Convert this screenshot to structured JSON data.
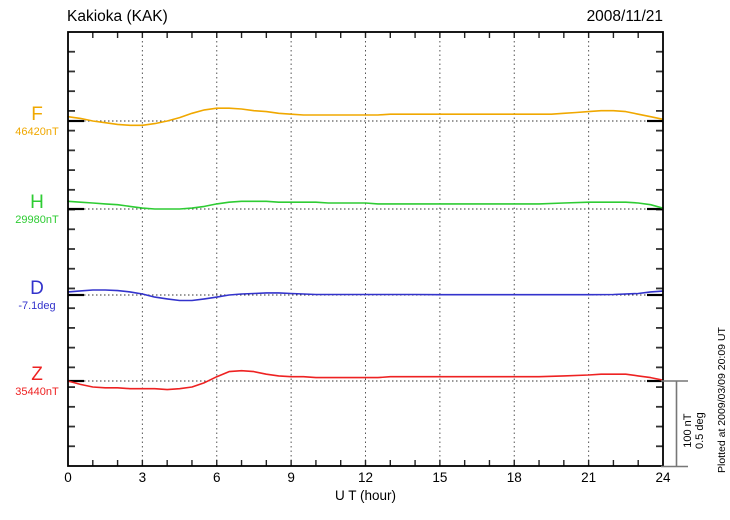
{
  "header": {
    "title": "Kakioka (KAK)",
    "date": "2008/11/21"
  },
  "axes": {
    "x_label": "U T (hour)",
    "x_ticks": [
      "0",
      "3",
      "6",
      "9",
      "12",
      "15",
      "18",
      "21",
      "24"
    ]
  },
  "channels": [
    {
      "id": "F",
      "label": "F",
      "baseline_label": "46420nT",
      "unit": "nT",
      "reference_value": 46420,
      "color": "#F0A800"
    },
    {
      "id": "H",
      "label": "H",
      "baseline_label": "29980nT",
      "unit": "nT",
      "reference_value": 29980,
      "color": "#2ECC33"
    },
    {
      "id": "D",
      "label": "D",
      "baseline_label": "-7.1deg",
      "unit": "deg",
      "reference_value": -7.1,
      "color": "#3333CC"
    },
    {
      "id": "Z",
      "label": "Z",
      "baseline_label": "35440nT",
      "unit": "nT",
      "reference_value": 35440,
      "color": "#EE2222"
    }
  ],
  "scale_bar": {
    "label_nT": "100 nT",
    "label_deg": "0.5 deg"
  },
  "footer_note": "Plotted at 2009/03/09 20:09 UT",
  "chart_data": {
    "type": "line",
    "title": "Kakioka (KAK) magnetogram",
    "date": "2008/11/21",
    "xlabel": "U T (hour)",
    "x_range": [
      0,
      24
    ],
    "x_tick_step_hours": 3,
    "grid": "vertical-dotted-every-3h, dotted reference line per channel",
    "legend_position": "left-margin channel labels",
    "scale": {
      "nT_per_division": 100,
      "deg_per_division": 0.5
    },
    "series": [
      {
        "name": "F",
        "unit": "nT",
        "reference": 46420,
        "points": [
          [
            0,
            5
          ],
          [
            0.5,
            3
          ],
          [
            1,
            0
          ],
          [
            1.5,
            -2
          ],
          [
            2,
            -4
          ],
          [
            2.5,
            -5
          ],
          [
            3,
            -5
          ],
          [
            3.5,
            -3
          ],
          [
            4,
            0
          ],
          [
            4.5,
            4
          ],
          [
            5,
            9
          ],
          [
            5.5,
            13
          ],
          [
            6,
            15
          ],
          [
            6.5,
            15
          ],
          [
            7,
            14
          ],
          [
            7.5,
            12
          ],
          [
            8,
            11
          ],
          [
            8.5,
            9
          ],
          [
            9,
            8
          ],
          [
            9.5,
            7
          ],
          [
            10,
            7
          ],
          [
            10.5,
            7
          ],
          [
            11,
            7
          ],
          [
            11.5,
            7
          ],
          [
            12,
            7
          ],
          [
            12.5,
            7
          ],
          [
            13,
            8
          ],
          [
            13.5,
            8
          ],
          [
            14,
            8
          ],
          [
            14.5,
            8
          ],
          [
            15,
            8
          ],
          [
            15.5,
            8
          ],
          [
            16,
            8
          ],
          [
            16.5,
            8
          ],
          [
            17,
            8
          ],
          [
            17.5,
            8
          ],
          [
            18,
            8
          ],
          [
            18.5,
            8
          ],
          [
            19,
            8
          ],
          [
            19.5,
            8
          ],
          [
            20,
            9
          ],
          [
            20.5,
            10
          ],
          [
            21,
            11
          ],
          [
            21.5,
            12
          ],
          [
            22,
            12
          ],
          [
            22.5,
            11
          ],
          [
            23,
            8
          ],
          [
            23.5,
            5
          ],
          [
            24,
            2
          ]
        ]
      },
      {
        "name": "H",
        "unit": "nT",
        "reference": 29980,
        "points": [
          [
            0,
            9
          ],
          [
            0.5,
            8
          ],
          [
            1,
            7
          ],
          [
            1.5,
            6
          ],
          [
            2,
            5
          ],
          [
            2.5,
            3
          ],
          [
            3,
            1
          ],
          [
            3.5,
            0
          ],
          [
            4,
            0
          ],
          [
            4.5,
            0
          ],
          [
            5,
            1
          ],
          [
            5.5,
            3
          ],
          [
            6,
            6
          ],
          [
            6.5,
            8
          ],
          [
            7,
            9
          ],
          [
            7.5,
            9
          ],
          [
            8,
            9
          ],
          [
            8.5,
            8
          ],
          [
            9,
            8
          ],
          [
            9.5,
            8
          ],
          [
            10,
            8
          ],
          [
            10.5,
            7
          ],
          [
            11,
            7
          ],
          [
            11.5,
            7
          ],
          [
            12,
            7
          ],
          [
            12.5,
            6
          ],
          [
            13,
            6
          ],
          [
            14,
            6
          ],
          [
            15,
            6
          ],
          [
            16,
            6
          ],
          [
            17,
            6
          ],
          [
            18,
            6
          ],
          [
            19,
            6
          ],
          [
            20,
            7
          ],
          [
            21,
            8
          ],
          [
            21.5,
            8
          ],
          [
            22,
            8
          ],
          [
            22.5,
            8
          ],
          [
            23,
            7
          ],
          [
            23.5,
            5
          ],
          [
            24,
            1
          ]
        ]
      },
      {
        "name": "D",
        "unit": "deg",
        "reference": -7.1,
        "points": [
          [
            0,
            0.018
          ],
          [
            0.5,
            0.024
          ],
          [
            1,
            0.029
          ],
          [
            1.5,
            0.029
          ],
          [
            2,
            0.026
          ],
          [
            2.5,
            0.018
          ],
          [
            3,
            0.006
          ],
          [
            3.5,
            -0.012
          ],
          [
            4,
            -0.023
          ],
          [
            4.5,
            -0.032
          ],
          [
            5,
            -0.032
          ],
          [
            5.5,
            -0.023
          ],
          [
            6,
            -0.012
          ],
          [
            6.5,
            0
          ],
          [
            7,
            0.006
          ],
          [
            7.5,
            0.009
          ],
          [
            8,
            0.012
          ],
          [
            8.5,
            0.012
          ],
          [
            9,
            0.009
          ],
          [
            9.5,
            0.006
          ],
          [
            10,
            0.003
          ],
          [
            11,
            0.003
          ],
          [
            12,
            0.003
          ],
          [
            13,
            0.003
          ],
          [
            14,
            0.003
          ],
          [
            15,
            0.002
          ],
          [
            16,
            0.002
          ],
          [
            17,
            0.002
          ],
          [
            18,
            0.002
          ],
          [
            19,
            0.002
          ],
          [
            20,
            0.002
          ],
          [
            21,
            0.002
          ],
          [
            22,
            0.003
          ],
          [
            23,
            0.009
          ],
          [
            23.5,
            0.018
          ],
          [
            24,
            0.023
          ]
        ]
      },
      {
        "name": "Z",
        "unit": "nT",
        "reference": 35440,
        "points": [
          [
            0,
            0
          ],
          [
            0.5,
            -4
          ],
          [
            1,
            -7
          ],
          [
            1.5,
            -8
          ],
          [
            2,
            -8
          ],
          [
            2.5,
            -9
          ],
          [
            3,
            -9
          ],
          [
            3.5,
            -9
          ],
          [
            4,
            -10
          ],
          [
            4.5,
            -9
          ],
          [
            5,
            -7
          ],
          [
            5.5,
            -2
          ],
          [
            6,
            5
          ],
          [
            6.5,
            11
          ],
          [
            7,
            12
          ],
          [
            7.5,
            11
          ],
          [
            8,
            8
          ],
          [
            8.5,
            6
          ],
          [
            9,
            5
          ],
          [
            9.5,
            5
          ],
          [
            10,
            4
          ],
          [
            10.5,
            4
          ],
          [
            11,
            4
          ],
          [
            11.5,
            4
          ],
          [
            12,
            4
          ],
          [
            12.5,
            4
          ],
          [
            13,
            5
          ],
          [
            14,
            5
          ],
          [
            15,
            5
          ],
          [
            16,
            5
          ],
          [
            17,
            5
          ],
          [
            18,
            5
          ],
          [
            19,
            5
          ],
          [
            20,
            6
          ],
          [
            21,
            7
          ],
          [
            21.5,
            8
          ],
          [
            22,
            8
          ],
          [
            22.5,
            8
          ],
          [
            23,
            6
          ],
          [
            23.5,
            4
          ],
          [
            24,
            1
          ]
        ]
      }
    ]
  }
}
